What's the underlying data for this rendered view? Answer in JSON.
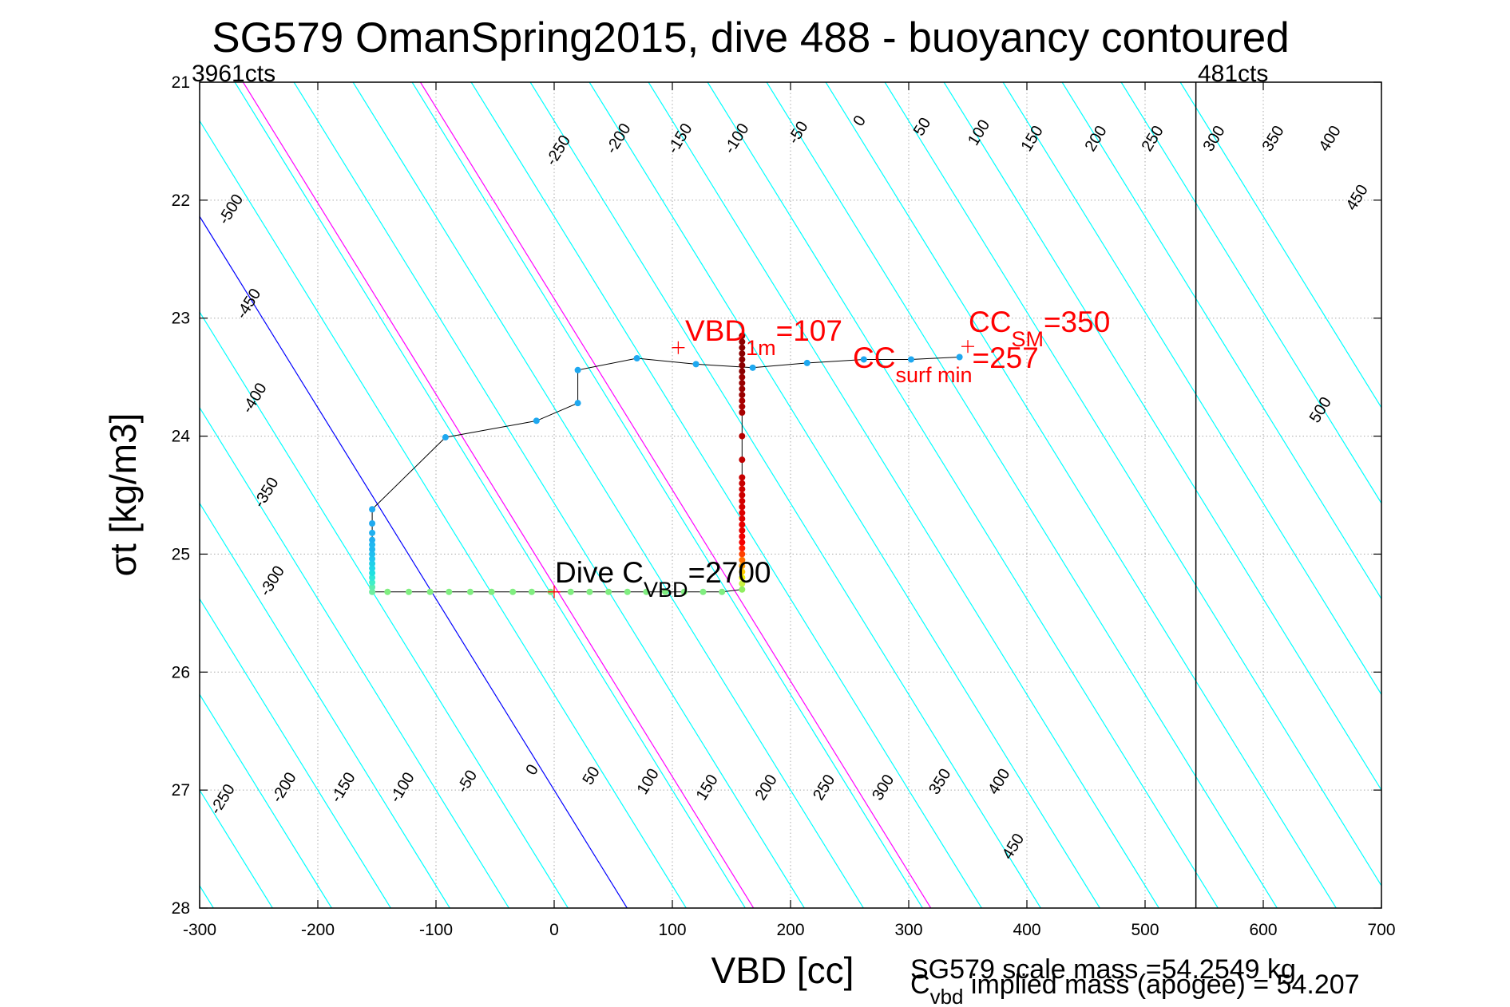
{
  "chart_data": {
    "type": "scatter",
    "title": "SG579 OmanSpring2015, dive 488 - buoyancy contoured",
    "xlabel": "VBD [cc]",
    "ylabel": "σt [kg/m3]",
    "xlim": [
      -300,
      700
    ],
    "ylim": [
      21,
      28
    ],
    "y_reversed": true,
    "grid": "dotted",
    "x_ticks": [
      "-300",
      "-200",
      "-100",
      "0",
      "100",
      "200",
      "300",
      "400",
      "500",
      "600",
      "700"
    ],
    "y_ticks": [
      "21",
      "22",
      "23",
      "24",
      "25",
      "26",
      "27",
      "28"
    ],
    "corner_labels": {
      "left": "3961cts",
      "right": "481cts"
    },
    "right_limit_line_vbd": 543,
    "buoyancy_contours": {
      "dvbd_per_sigma": 61.7,
      "offsets": [
        -500,
        -450,
        -400,
        -350,
        -300,
        -250,
        -200,
        -150,
        -100,
        -50,
        0,
        50,
        100,
        150,
        200,
        250,
        300,
        350,
        400,
        450,
        500
      ],
      "highlighted": [
        {
          "offset": 0,
          "color": "#0000ff"
        },
        {
          "offset": 107,
          "color": "#ff00ff"
        },
        {
          "offset": 257,
          "color": "#ff00ff"
        }
      ],
      "labels_top": [
        {
          "text": "-500",
          "vbd": -270,
          "sigma": 22.1
        },
        {
          "text": "-450",
          "vbd": -255,
          "sigma": 22.9
        },
        {
          "text": "-400",
          "vbd": -250,
          "sigma": 23.7
        },
        {
          "text": "-350",
          "vbd": -240,
          "sigma": 24.5
        },
        {
          "text": "-300",
          "vbd": -235,
          "sigma": 25.25
        },
        {
          "text": "-250",
          "vbd": 7,
          "sigma": 21.6
        },
        {
          "text": "-200",
          "vbd": 58,
          "sigma": 21.5
        },
        {
          "text": "-150",
          "vbd": 110,
          "sigma": 21.5
        },
        {
          "text": "-100",
          "vbd": 158,
          "sigma": 21.5
        },
        {
          "text": "-50",
          "vbd": 210,
          "sigma": 21.45
        },
        {
          "text": "0",
          "vbd": 262,
          "sigma": 21.35
        },
        {
          "text": "50",
          "vbd": 315,
          "sigma": 21.4
        },
        {
          "text": "100",
          "vbd": 363,
          "sigma": 21.45
        },
        {
          "text": "150",
          "vbd": 408,
          "sigma": 21.5
        },
        {
          "text": "200",
          "vbd": 462,
          "sigma": 21.5
        },
        {
          "text": "250",
          "vbd": 510,
          "sigma": 21.5
        },
        {
          "text": "300",
          "vbd": 562,
          "sigma": 21.5
        },
        {
          "text": "350",
          "vbd": 612,
          "sigma": 21.5
        },
        {
          "text": "400",
          "vbd": 660,
          "sigma": 21.5
        },
        {
          "text": "450",
          "vbd": 683,
          "sigma": 22.0
        },
        {
          "text": "500",
          "vbd": 652,
          "sigma": 23.8
        }
      ],
      "labels_bottom": [
        {
          "text": "-250",
          "vbd": -277,
          "sigma": 27.1
        },
        {
          "text": "-200",
          "vbd": -225,
          "sigma": 27.0
        },
        {
          "text": "-150",
          "vbd": -175,
          "sigma": 27.0
        },
        {
          "text": "-100",
          "vbd": -125,
          "sigma": 27.0
        },
        {
          "text": "-50",
          "vbd": -70,
          "sigma": 26.95
        },
        {
          "text": "0",
          "vbd": -15,
          "sigma": 26.85
        },
        {
          "text": "50",
          "vbd": 35,
          "sigma": 26.9
        },
        {
          "text": "100",
          "vbd": 83,
          "sigma": 26.95
        },
        {
          "text": "150",
          "vbd": 133,
          "sigma": 27.0
        },
        {
          "text": "200",
          "vbd": 183,
          "sigma": 27.0
        },
        {
          "text": "250",
          "vbd": 232,
          "sigma": 27.0
        },
        {
          "text": "300",
          "vbd": 282,
          "sigma": 27.0
        },
        {
          "text": "350",
          "vbd": 330,
          "sigma": 26.95
        },
        {
          "text": "400",
          "vbd": 380,
          "sigma": 26.95
        },
        {
          "text": "450",
          "vbd": 392,
          "sigma": 27.5
        }
      ]
    },
    "profile_points": [
      {
        "vbd": 159,
        "sigma": 23.15,
        "color": "#8b0000"
      },
      {
        "vbd": 159,
        "sigma": 23.2,
        "color": "#8b0000"
      },
      {
        "vbd": 159,
        "sigma": 23.25,
        "color": "#8b0000"
      },
      {
        "vbd": 159,
        "sigma": 23.3,
        "color": "#8b0000"
      },
      {
        "vbd": 159,
        "sigma": 23.35,
        "color": "#8b0000"
      },
      {
        "vbd": 159,
        "sigma": 23.4,
        "color": "#8b0000"
      },
      {
        "vbd": 159,
        "sigma": 23.45,
        "color": "#8b0000"
      },
      {
        "vbd": 159,
        "sigma": 23.5,
        "color": "#990000"
      },
      {
        "vbd": 159,
        "sigma": 23.55,
        "color": "#990000"
      },
      {
        "vbd": 159,
        "sigma": 23.6,
        "color": "#990000"
      },
      {
        "vbd": 159,
        "sigma": 23.65,
        "color": "#990000"
      },
      {
        "vbd": 159,
        "sigma": 23.7,
        "color": "#a80000"
      },
      {
        "vbd": 159,
        "sigma": 23.75,
        "color": "#a80000"
      },
      {
        "vbd": 159,
        "sigma": 23.8,
        "color": "#a80000"
      },
      {
        "vbd": 159,
        "sigma": 24.0,
        "color": "#b50000"
      },
      {
        "vbd": 159,
        "sigma": 24.2,
        "color": "#c00000"
      },
      {
        "vbd": 159,
        "sigma": 24.35,
        "color": "#c80000"
      },
      {
        "vbd": 159,
        "sigma": 24.4,
        "color": "#c80000"
      },
      {
        "vbd": 159,
        "sigma": 24.45,
        "color": "#cc0000"
      },
      {
        "vbd": 159,
        "sigma": 24.5,
        "color": "#cc0000"
      },
      {
        "vbd": 159,
        "sigma": 24.55,
        "color": "#d40000"
      },
      {
        "vbd": 159,
        "sigma": 24.6,
        "color": "#d40000"
      },
      {
        "vbd": 159,
        "sigma": 24.65,
        "color": "#dd0000"
      },
      {
        "vbd": 159,
        "sigma": 24.7,
        "color": "#dd0000"
      },
      {
        "vbd": 159,
        "sigma": 24.75,
        "color": "#e60000"
      },
      {
        "vbd": 159,
        "sigma": 24.8,
        "color": "#e60000"
      },
      {
        "vbd": 159,
        "sigma": 24.85,
        "color": "#ee0000"
      },
      {
        "vbd": 159,
        "sigma": 24.9,
        "color": "#f50000"
      },
      {
        "vbd": 159,
        "sigma": 24.95,
        "color": "#ff1a00"
      },
      {
        "vbd": 159,
        "sigma": 25.0,
        "color": "#ff4000"
      },
      {
        "vbd": 159,
        "sigma": 25.05,
        "color": "#ff7000"
      },
      {
        "vbd": 159,
        "sigma": 25.1,
        "color": "#ffa000"
      },
      {
        "vbd": 159,
        "sigma": 25.15,
        "color": "#ffcc00"
      },
      {
        "vbd": 159,
        "sigma": 25.2,
        "color": "#f0f000"
      },
      {
        "vbd": 159,
        "sigma": 25.25,
        "color": "#c8f040"
      },
      {
        "vbd": 159,
        "sigma": 25.3,
        "color": "#90ee60"
      },
      {
        "vbd": 142,
        "sigma": 25.32,
        "color": "#80ee80"
      },
      {
        "vbd": 126,
        "sigma": 25.32,
        "color": "#80ee80"
      },
      {
        "vbd": 110,
        "sigma": 25.32,
        "color": "#80ee80"
      },
      {
        "vbd": 94,
        "sigma": 25.32,
        "color": "#80ee80"
      },
      {
        "vbd": 78,
        "sigma": 25.32,
        "color": "#80ee80"
      },
      {
        "vbd": 62,
        "sigma": 25.32,
        "color": "#80ee80"
      },
      {
        "vbd": 46,
        "sigma": 25.32,
        "color": "#80ee80"
      },
      {
        "vbd": 30,
        "sigma": 25.32,
        "color": "#80ee80"
      },
      {
        "vbd": 14,
        "sigma": 25.32,
        "color": "#80ee80"
      },
      {
        "vbd": -3,
        "sigma": 25.32,
        "color": "#80ee80"
      },
      {
        "vbd": -19,
        "sigma": 25.32,
        "color": "#80ee80"
      },
      {
        "vbd": -35,
        "sigma": 25.32,
        "color": "#80ee80"
      },
      {
        "vbd": -53,
        "sigma": 25.32,
        "color": "#80ee80"
      },
      {
        "vbd": -71,
        "sigma": 25.32,
        "color": "#80ee80"
      },
      {
        "vbd": -89,
        "sigma": 25.32,
        "color": "#80ee80"
      },
      {
        "vbd": -105,
        "sigma": 25.32,
        "color": "#80ee80"
      },
      {
        "vbd": -123,
        "sigma": 25.32,
        "color": "#80ee80"
      },
      {
        "vbd": -141,
        "sigma": 25.32,
        "color": "#80ee80"
      },
      {
        "vbd": -154,
        "sigma": 25.32,
        "color": "#70eea0"
      },
      {
        "vbd": -154,
        "sigma": 25.28,
        "color": "#60eeb0"
      },
      {
        "vbd": -154,
        "sigma": 25.24,
        "color": "#40eec8"
      },
      {
        "vbd": -154,
        "sigma": 25.2,
        "color": "#30e8d8"
      },
      {
        "vbd": -154,
        "sigma": 25.16,
        "color": "#20e0e0"
      },
      {
        "vbd": -154,
        "sigma": 25.12,
        "color": "#20d8e8"
      },
      {
        "vbd": -154,
        "sigma": 25.08,
        "color": "#20d0e8"
      },
      {
        "vbd": -154,
        "sigma": 25.04,
        "color": "#20c8f0"
      },
      {
        "vbd": -154,
        "sigma": 25.0,
        "color": "#20c0f0"
      },
      {
        "vbd": -154,
        "sigma": 24.96,
        "color": "#20b8f0"
      },
      {
        "vbd": -154,
        "sigma": 24.92,
        "color": "#20b8f0"
      },
      {
        "vbd": -154,
        "sigma": 24.88,
        "color": "#20b0f0"
      },
      {
        "vbd": -154,
        "sigma": 24.82,
        "color": "#20b0f0"
      },
      {
        "vbd": -154,
        "sigma": 24.74,
        "color": "#20aaf0"
      },
      {
        "vbd": -154,
        "sigma": 24.62,
        "color": "#20aaf0"
      },
      {
        "vbd": -92,
        "sigma": 24.01,
        "color": "#1ea8f0"
      },
      {
        "vbd": -15,
        "sigma": 23.87,
        "color": "#1ea8f0"
      },
      {
        "vbd": 20,
        "sigma": 23.72,
        "color": "#1ea8f0"
      },
      {
        "vbd": 20,
        "sigma": 23.44,
        "color": "#1ea8f0"
      },
      {
        "vbd": 70,
        "sigma": 23.34,
        "color": "#1ea8f0"
      },
      {
        "vbd": 120,
        "sigma": 23.39,
        "color": "#1ea8f0"
      },
      {
        "vbd": 168,
        "sigma": 23.42,
        "color": "#1ea8f0"
      },
      {
        "vbd": 214,
        "sigma": 23.38,
        "color": "#1ea8f0"
      },
      {
        "vbd": 262,
        "sigma": 23.35,
        "color": "#1ea8f0"
      },
      {
        "vbd": 302,
        "sigma": 23.35,
        "color": "#1ea8f0"
      },
      {
        "vbd": 343,
        "sigma": 23.33,
        "color": "#1ea8f0"
      }
    ],
    "markers": [
      {
        "name": "vbd-1m",
        "vbd": 105,
        "sigma": 23.25
      },
      {
        "name": "cc-sm",
        "vbd": 350,
        "sigma": 23.24
      },
      {
        "name": "dive-cvbd",
        "vbd": 0,
        "sigma": 25.32
      }
    ],
    "annotations": {
      "vbd_1m": {
        "main": "VBD",
        "sub": "1m",
        "value": "=107"
      },
      "cc_sm": {
        "main": "CC",
        "sub": "SM",
        "value": "=350"
      },
      "cc_surf_min": {
        "main": "CC",
        "sub": "surf min",
        "value": "=257"
      },
      "dive_cvbd": {
        "main": "Dive C",
        "sub": "VBD",
        "value": "=2700"
      }
    },
    "footer": {
      "scale_mass": "SG579 scale mass =54.2549 kg",
      "implied_main": "C",
      "implied_sub": "vbd",
      "implied_rest": " implied mass (apogee) = 54.207"
    },
    "colors": {
      "contour": "#00ffff",
      "zero_contour": "#0000ff",
      "highlight_contour": "#ff00ff",
      "annotation": "#ff0000",
      "profile_line": "#000000",
      "grid": "#aaaaaa"
    }
  }
}
